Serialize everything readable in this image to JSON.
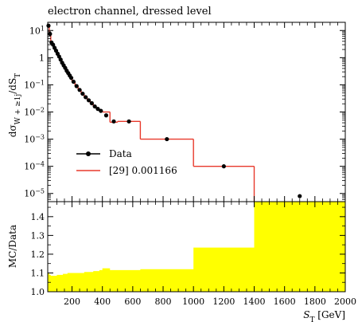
{
  "chart_data": [
    {
      "type": "line",
      "panel": "main",
      "title": "electron channel, dressed level",
      "ylabel_parts": [
        "dσ",
        "W + ≥1",
        "j",
        "/dS",
        "T"
      ],
      "xlabel": "",
      "xlim": [
        40,
        2000
      ],
      "ylim": [
        5e-06,
        20
      ],
      "yscale": "log",
      "y_ticks": [
        {
          "value": 1e-05,
          "base": "10",
          "exp": "−5"
        },
        {
          "value": 0.0001,
          "base": "10",
          "exp": "−4"
        },
        {
          "value": 0.001,
          "base": "10",
          "exp": "−3"
        },
        {
          "value": 0.01,
          "base": "10",
          "exp": "−2"
        },
        {
          "value": 0.1,
          "base": "10",
          "exp": "−1"
        },
        {
          "value": 1,
          "base": "1",
          "exp": ""
        },
        {
          "value": 10,
          "base": "10",
          "exp": "1"
        }
      ],
      "legend_position": "bottom-left",
      "series": [
        {
          "name": "Data",
          "marker": "circle",
          "color": "#000000",
          "x": [
            45,
            55,
            65,
            75,
            85,
            95,
            105,
            115,
            125,
            135,
            145,
            155,
            165,
            175,
            185,
            195,
            210,
            230,
            250,
            270,
            290,
            310,
            330,
            350,
            370,
            390,
            425,
            475,
            575,
            825,
            1200,
            1700
          ],
          "y": [
            15,
            7.5,
            3.6,
            3.0,
            2.3,
            1.8,
            1.4,
            1.1,
            0.85,
            0.65,
            0.52,
            0.42,
            0.33,
            0.27,
            0.22,
            0.18,
            0.13,
            0.09,
            0.065,
            0.047,
            0.035,
            0.027,
            0.021,
            0.016,
            0.013,
            0.011,
            0.0075,
            0.0045,
            0.0045,
            0.001,
            0.0001,
            8e-06
          ]
        },
        {
          "name": "[29] 0.001166",
          "style": "histogram",
          "color": "#e8392b",
          "edges": [
            40,
            50,
            60,
            70,
            80,
            90,
            100,
            110,
            120,
            130,
            140,
            150,
            160,
            170,
            180,
            190,
            200,
            220,
            240,
            260,
            280,
            300,
            320,
            340,
            360,
            380,
            400,
            450,
            500,
            650,
            1000,
            1400
          ],
          "y": [
            16,
            7.5,
            3.6,
            3.0,
            2.3,
            1.8,
            1.4,
            1.1,
            0.85,
            0.65,
            0.52,
            0.42,
            0.33,
            0.27,
            0.22,
            0.18,
            0.13,
            0.09,
            0.065,
            0.047,
            0.035,
            0.027,
            0.021,
            0.016,
            0.013,
            0.011,
            0.01,
            0.0042,
            0.0045,
            0.001,
            0.0001
          ]
        }
      ]
    },
    {
      "type": "area",
      "panel": "ratio",
      "ylabel": "MC/Data",
      "xlabel_parts": [
        "S",
        "T",
        " [GeV]"
      ],
      "xlim": [
        40,
        2000
      ],
      "ylim": [
        1.0,
        1.48
      ],
      "x_ticks": [
        200,
        400,
        600,
        800,
        1000,
        1200,
        1400,
        1600,
        1800,
        2000
      ],
      "y_ticks": [
        1.0,
        1.1,
        1.2,
        1.3,
        1.4
      ],
      "band_color": "#ffff00",
      "band": {
        "edges": [
          40,
          50,
          60,
          70,
          80,
          90,
          100,
          110,
          120,
          130,
          140,
          150,
          160,
          170,
          180,
          190,
          200,
          220,
          240,
          260,
          280,
          300,
          320,
          340,
          360,
          380,
          400,
          450,
          500,
          650,
          1000,
          1400,
          2000
        ],
        "upper": [
          1.1,
          1.09,
          1.085,
          1.085,
          1.085,
          1.085,
          1.09,
          1.09,
          1.09,
          1.09,
          1.095,
          1.095,
          1.095,
          1.1,
          1.1,
          1.1,
          1.1,
          1.1,
          1.1,
          1.1,
          1.105,
          1.105,
          1.105,
          1.11,
          1.11,
          1.115,
          1.125,
          1.115,
          1.115,
          1.12,
          1.235,
          1.48
        ]
      }
    }
  ]
}
